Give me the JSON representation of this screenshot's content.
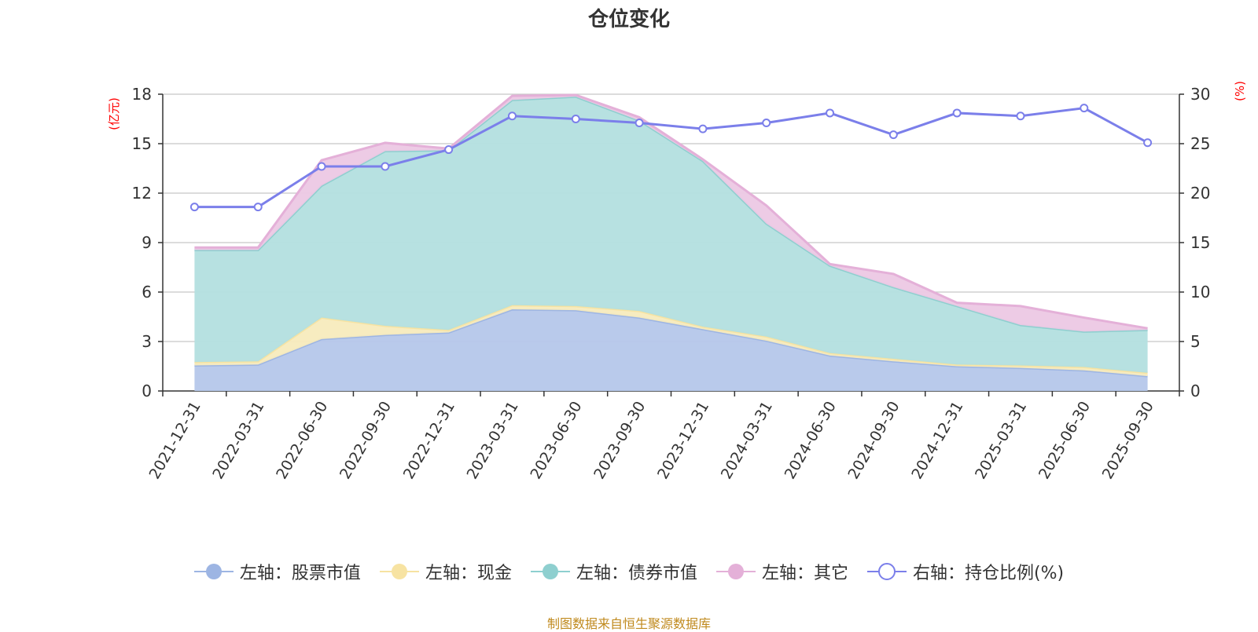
{
  "chart_data": {
    "type": "area",
    "title": "仓位变化",
    "categories": [
      "2021-12-31",
      "2022-03-31",
      "2022-06-30",
      "2022-09-30",
      "2022-12-31",
      "2023-03-31",
      "2023-06-30",
      "2023-09-30",
      "2023-12-31",
      "2024-03-31",
      "2024-06-30",
      "2024-09-30",
      "2024-12-31",
      "2025-03-31",
      "2025-06-30",
      "2025-09-30"
    ],
    "left_axis": {
      "unit": "(亿元)",
      "min": 0,
      "max": 18,
      "ticks": [
        0,
        3,
        6,
        9,
        12,
        15,
        18
      ]
    },
    "right_axis": {
      "unit": "(%)",
      "min": 0,
      "max": 30,
      "ticks": [
        0,
        5,
        10,
        15,
        20,
        25,
        30
      ]
    },
    "series": [
      {
        "name": "左轴：股票市值",
        "axis": "left",
        "kind": "stacked-area",
        "color": "#9db5e3",
        "fill": "#b5c7ea",
        "values": [
          1.55,
          1.6,
          3.15,
          3.4,
          3.55,
          4.95,
          4.9,
          4.45,
          3.75,
          3.05,
          2.15,
          1.8,
          1.5,
          1.4,
          1.25,
          0.9
        ]
      },
      {
        "name": "左轴：现金",
        "axis": "left",
        "kind": "stacked-area",
        "color": "#f7e3a2",
        "fill": "#f7ebbd",
        "values": [
          0.2,
          0.2,
          1.3,
          0.55,
          0.15,
          0.25,
          0.25,
          0.4,
          0.15,
          0.25,
          0.15,
          0.15,
          0.1,
          0.15,
          0.2,
          0.2
        ]
      },
      {
        "name": "左轴：债券市值",
        "axis": "left",
        "kind": "stacked-area",
        "color": "#8ecfcf",
        "fill": "#b3dfdf",
        "values": [
          6.8,
          6.75,
          8.0,
          10.6,
          10.9,
          12.45,
          12.7,
          11.55,
          10.05,
          6.85,
          5.3,
          4.35,
          3.55,
          2.45,
          2.15,
          2.6
        ]
      },
      {
        "name": "左轴：其它",
        "axis": "left",
        "kind": "stacked-area",
        "color": "#e4b0d8",
        "fill": "#ecc8e4",
        "values": [
          0.15,
          0.15,
          1.55,
          0.5,
          0.1,
          0.25,
          0.1,
          0.2,
          0.1,
          1.1,
          0.1,
          0.8,
          0.2,
          1.15,
          0.85,
          0.1
        ]
      },
      {
        "name": "右轴：持仓比例(%)",
        "axis": "right",
        "kind": "line",
        "color": "#7b7fea",
        "values": [
          18.6,
          18.6,
          22.7,
          22.7,
          24.4,
          27.8,
          27.5,
          27.1,
          26.5,
          27.1,
          28.1,
          25.9,
          28.1,
          27.8,
          28.6,
          25.1
        ]
      }
    ],
    "legend_position": "bottom",
    "grid": true
  },
  "footer": {
    "source": "制图数据来自恒生聚源数据库"
  }
}
